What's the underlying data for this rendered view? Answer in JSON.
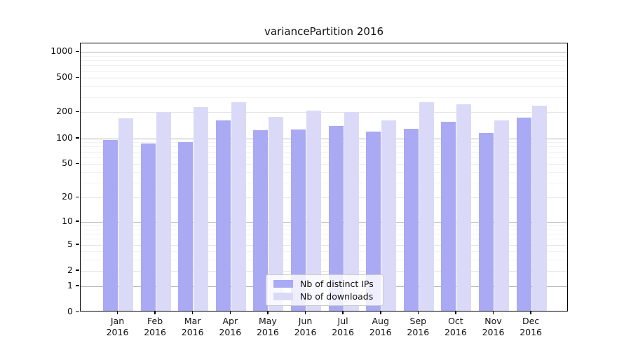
{
  "window": {
    "background": "#ffffff"
  },
  "chart_data": {
    "type": "bar",
    "title": "variancePartition 2016",
    "categories": [
      "Jan",
      "Feb",
      "Mar",
      "Apr",
      "May",
      "Jun",
      "Jul",
      "Aug",
      "Sep",
      "Oct",
      "Nov",
      "Dec"
    ],
    "category_year": "2016",
    "series": [
      {
        "name": "Nb of distinct IPs",
        "color": "#a9a9f4",
        "values": [
          92,
          84,
          87,
          154,
          119,
          123,
          133,
          115,
          124,
          151,
          110,
          166
        ]
      },
      {
        "name": "Nb of downloads",
        "color": "#dadaf8",
        "values": [
          164,
          194,
          221,
          251,
          170,
          201,
          194,
          155,
          252,
          238,
          155,
          229
        ]
      }
    ],
    "yscale": "log1p",
    "ylim": [
      0,
      1250
    ],
    "yticks": [
      0,
      1,
      2,
      5,
      10,
      20,
      50,
      100,
      200,
      500,
      1000
    ],
    "ytick_labels": [
      "0",
      "1",
      "2",
      "5",
      "10",
      "20",
      "50",
      "100",
      "200",
      "500",
      "1000"
    ],
    "grid": true,
    "legend": {
      "position": "lower-center-inside"
    },
    "colors": {
      "axis": "#000000",
      "grid_major": "#b5b5b5",
      "grid_mid": "#e4e4e4",
      "grid_minor": "#f2f2f2",
      "legend_border": "#cccccc"
    }
  }
}
